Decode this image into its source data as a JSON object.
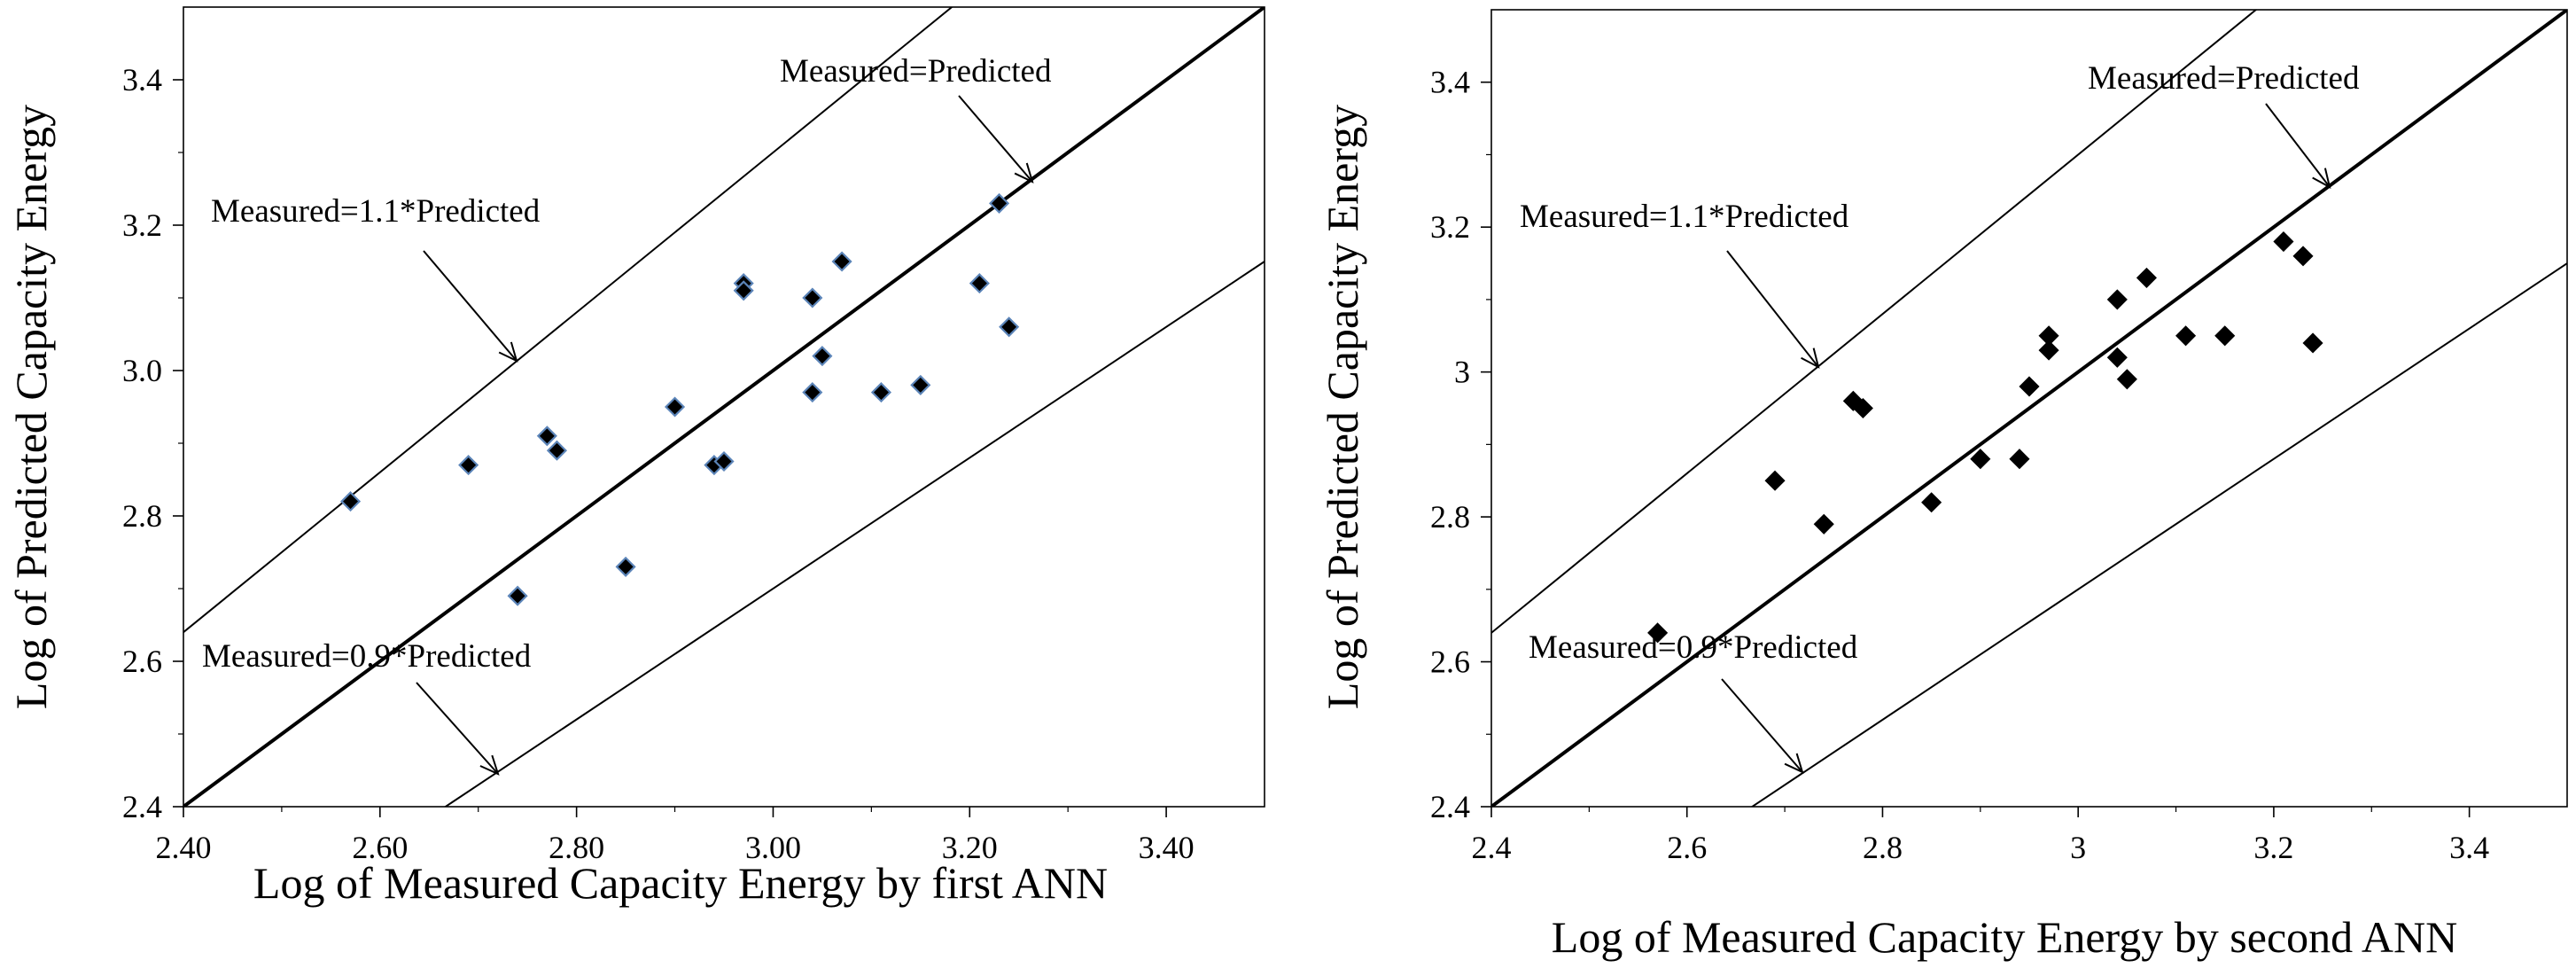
{
  "chart_data": [
    {
      "type": "scatter",
      "marker": "diamond",
      "marker_color": "#000000",
      "marker_edge_color": "#5b84b8",
      "xlabel": "Log of Measured Capacity Energy by first ANN",
      "ylabel": "Log of Predicted Capacity Energy",
      "xlim": [
        2.4,
        3.5
      ],
      "ylim": [
        2.4,
        3.5
      ],
      "x_ticks": [
        2.4,
        2.6,
        2.8,
        3.0,
        3.2,
        3.4
      ],
      "x_tick_labels": [
        "2.40",
        "2.60",
        "2.80",
        "3.00",
        "3.20",
        "3.40"
      ],
      "y_ticks": [
        2.4,
        2.6,
        2.8,
        3.0,
        3.2,
        3.4
      ],
      "y_tick_labels": [
        "2.4",
        "2.6",
        "2.8",
        "3.0",
        "3.2",
        "3.4"
      ],
      "grid": false,
      "lines": [
        {
          "label": "Measured=Predicted",
          "slope": 1.0,
          "bold": true
        },
        {
          "label": "Measured=1.1*Predicted",
          "slope": 1.1,
          "bold": false
        },
        {
          "label": "Measured=0.9*Predicted",
          "slope": 0.9,
          "bold": false
        }
      ],
      "annotations": [
        "Measured=Predicted",
        "Measured=1.1*Predicted",
        "Measured=0.9*Predicted"
      ],
      "points": [
        {
          "x": 2.57,
          "y": 2.82
        },
        {
          "x": 2.69,
          "y": 2.87
        },
        {
          "x": 2.74,
          "y": 2.69
        },
        {
          "x": 2.77,
          "y": 2.91
        },
        {
          "x": 2.78,
          "y": 2.89
        },
        {
          "x": 2.85,
          "y": 2.73
        },
        {
          "x": 2.9,
          "y": 2.95
        },
        {
          "x": 2.94,
          "y": 2.87
        },
        {
          "x": 2.95,
          "y": 2.875
        },
        {
          "x": 2.97,
          "y": 3.12
        },
        {
          "x": 2.97,
          "y": 3.11
        },
        {
          "x": 3.04,
          "y": 2.97
        },
        {
          "x": 3.04,
          "y": 3.1
        },
        {
          "x": 3.05,
          "y": 3.02
        },
        {
          "x": 3.07,
          "y": 3.15
        },
        {
          "x": 3.11,
          "y": 2.97
        },
        {
          "x": 3.15,
          "y": 2.98
        },
        {
          "x": 3.21,
          "y": 3.12
        },
        {
          "x": 3.23,
          "y": 3.23
        },
        {
          "x": 3.24,
          "y": 3.06
        }
      ]
    },
    {
      "type": "scatter",
      "marker": "diamond",
      "marker_color": "#000000",
      "marker_edge_color": "#000000",
      "xlabel": "Log of Measured Capacity Energy by second ANN",
      "ylabel": "Log of Predicted Capacity Energy",
      "xlim": [
        2.4,
        3.5
      ],
      "ylim": [
        2.4,
        3.5
      ],
      "x_ticks": [
        2.4,
        2.6,
        2.8,
        3.0,
        3.2,
        3.4
      ],
      "x_tick_labels": [
        "2.4",
        "2.6",
        "2.8",
        "3",
        "3.2",
        "3.4"
      ],
      "y_ticks": [
        2.4,
        2.6,
        2.8,
        3.0,
        3.2,
        3.4
      ],
      "y_tick_labels": [
        "2.4",
        "2.6",
        "2.8",
        "3",
        "3.2",
        "3.4"
      ],
      "grid": false,
      "lines": [
        {
          "label": "Measured=Predicted",
          "slope": 1.0,
          "bold": true
        },
        {
          "label": "Measured=1.1*Predicted",
          "slope": 1.1,
          "bold": false
        },
        {
          "label": "Measured=0.9*Predicted",
          "slope": 0.9,
          "bold": false
        }
      ],
      "annotations": [
        "Measured=Predicted",
        "Measured=1.1*Predicted",
        "Measured=0.9*Predicted"
      ],
      "points": [
        {
          "x": 2.57,
          "y": 2.64
        },
        {
          "x": 2.69,
          "y": 2.85
        },
        {
          "x": 2.74,
          "y": 2.79
        },
        {
          "x": 2.77,
          "y": 2.96
        },
        {
          "x": 2.78,
          "y": 2.95
        },
        {
          "x": 2.85,
          "y": 2.82
        },
        {
          "x": 2.9,
          "y": 2.88
        },
        {
          "x": 2.94,
          "y": 2.88
        },
        {
          "x": 2.95,
          "y": 2.98
        },
        {
          "x": 2.97,
          "y": 3.05
        },
        {
          "x": 2.97,
          "y": 3.03
        },
        {
          "x": 3.04,
          "y": 3.02
        },
        {
          "x": 3.04,
          "y": 3.1
        },
        {
          "x": 3.05,
          "y": 2.99
        },
        {
          "x": 3.07,
          "y": 3.13
        },
        {
          "x": 3.11,
          "y": 3.05
        },
        {
          "x": 3.15,
          "y": 3.05
        },
        {
          "x": 3.21,
          "y": 3.18
        },
        {
          "x": 3.23,
          "y": 3.16
        },
        {
          "x": 3.24,
          "y": 3.04
        }
      ]
    }
  ]
}
